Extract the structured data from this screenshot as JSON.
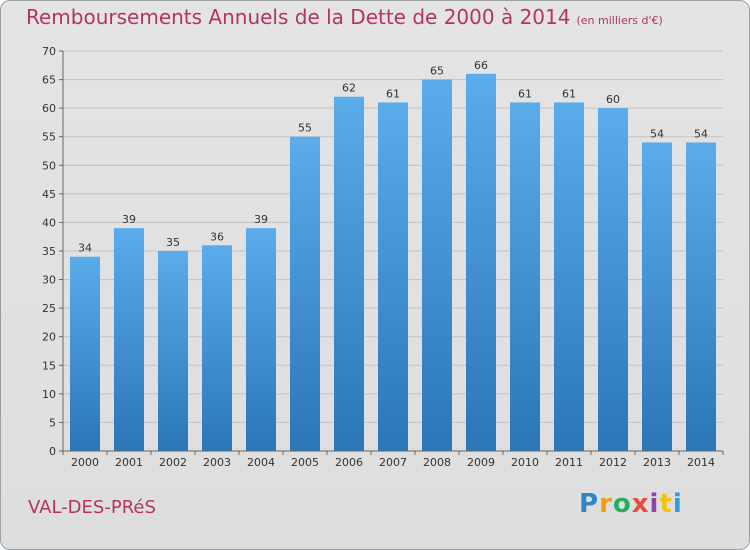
{
  "title": "Remboursements Annuels de la Dette de 2000 à 2014",
  "unit": "(en milliers d'€)",
  "commune": "VAL-DES-PRéS",
  "brand": {
    "letters": [
      "P",
      "r",
      "o",
      "x",
      "i",
      "t",
      "i"
    ],
    "colors": [
      "#2e86c1",
      "#f39c12",
      "#27ae60",
      "#e74c3c",
      "#8e44ad",
      "#f1c40f",
      "#3498db"
    ]
  },
  "colors": {
    "bar_top": "#5aacea",
    "bar_bottom": "#2a76b8",
    "title": "#b53360",
    "grid": "#c2c2c2"
  },
  "chart_data": {
    "type": "bar",
    "categories": [
      "2000",
      "2001",
      "2002",
      "2003",
      "2004",
      "2005",
      "2006",
      "2007",
      "2008",
      "2009",
      "2010",
      "2011",
      "2012",
      "2013",
      "2014"
    ],
    "values": [
      34,
      39,
      35,
      36,
      39,
      55,
      62,
      61,
      65,
      66,
      61,
      61,
      60,
      54,
      54
    ],
    "ylim": [
      0,
      70
    ],
    "yticks": [
      0,
      5,
      10,
      15,
      20,
      25,
      30,
      35,
      40,
      45,
      50,
      55,
      60,
      65,
      70
    ],
    "grid": true,
    "data_labels": true
  }
}
